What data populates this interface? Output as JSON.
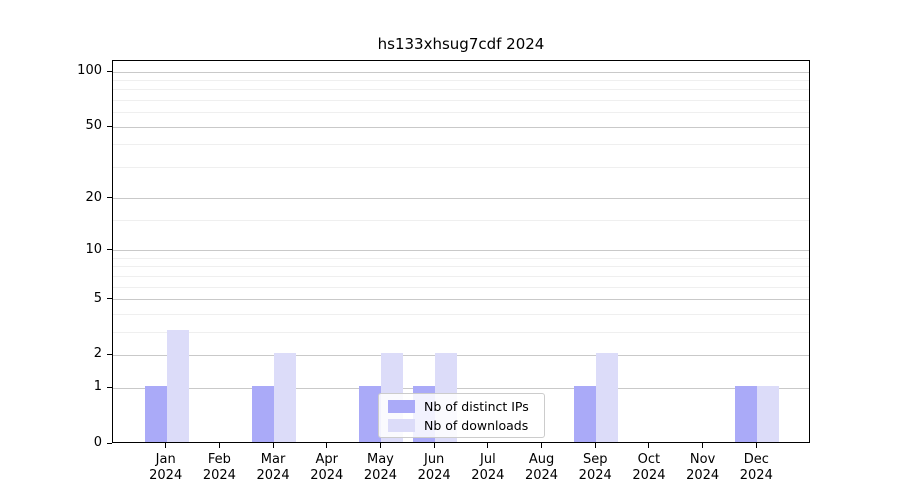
{
  "chart_data": {
    "type": "bar",
    "title": "hs133xhsug7cdf 2024",
    "categories": [
      "Jan",
      "Feb",
      "Mar",
      "Apr",
      "May",
      "Jun",
      "Jul",
      "Aug",
      "Sep",
      "Oct",
      "Nov",
      "Dec"
    ],
    "category_year": "2024",
    "series": [
      {
        "name": "Nb of distinct IPs",
        "color": "#aaaaf8",
        "values": [
          1,
          0,
          1,
          0,
          1,
          1,
          0,
          0,
          1,
          0,
          0,
          1
        ]
      },
      {
        "name": "Nb of downloads",
        "color": "#dcdcf9",
        "values": [
          3,
          0,
          2,
          0,
          2,
          2,
          0,
          0,
          2,
          0,
          0,
          1
        ]
      }
    ],
    "xlabel": "",
    "ylabel": "",
    "y_scale": "log1p",
    "y_major_ticks": [
      0,
      1,
      2,
      5,
      10,
      20,
      50,
      100
    ],
    "y_minor_gridlines": [
      3,
      4,
      6,
      7,
      8,
      9,
      15,
      30,
      40,
      60,
      70,
      80,
      90
    ],
    "ylim": [
      0,
      115
    ],
    "grid": "horizontal",
    "legend_position": "lower-center-inside"
  }
}
